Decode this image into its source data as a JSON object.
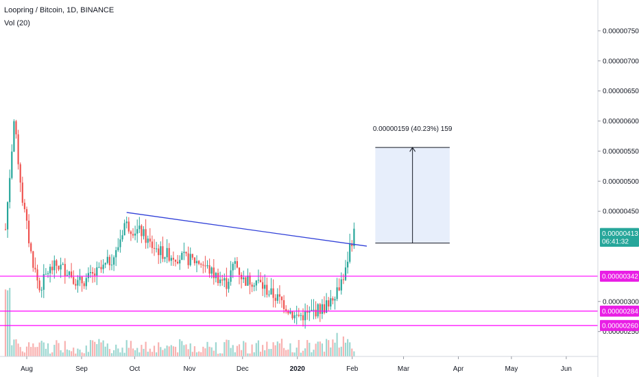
{
  "header": {
    "title": "Loopring / Bitcoin, 1D, BINANCE",
    "indicator": "Vol (20)"
  },
  "chart_data": {
    "type": "candlestick",
    "symbol": "Loopring / Bitcoin",
    "interval": "1D",
    "exchange": "BINANCE",
    "price_axis": {
      "range": [
        2.2e-06,
        7.75e-06
      ],
      "tick_labels": [
        "0.00000750",
        "0.00000700",
        "0.00000650",
        "0.00000600",
        "0.00000550",
        "0.00000500",
        "0.00000450",
        "0.00000300",
        "0.00000250"
      ]
    },
    "time_axis": {
      "tick_labels": [
        "Aug",
        "Sep",
        "Oct",
        "Nov",
        "Dec",
        "2020",
        "Feb",
        "Mar",
        "Apr",
        "May",
        "Jun"
      ]
    },
    "price_path": [
      [
        0,
        4.2e-06
      ],
      [
        4,
        6e-06
      ],
      [
        8,
        4.7e-06
      ],
      [
        12,
        3.8e-06
      ],
      [
        16,
        3.2e-06
      ],
      [
        20,
        3.5e-06
      ],
      [
        24,
        3.6e-06
      ],
      [
        30,
        3.5e-06
      ],
      [
        34,
        3.3e-06
      ],
      [
        40,
        3.4e-06
      ],
      [
        46,
        3.55e-06
      ],
      [
        52,
        3.8e-06
      ],
      [
        56,
        4.3e-06
      ],
      [
        60,
        4.2e-06
      ],
      [
        64,
        4.15e-06
      ],
      [
        68,
        3.95e-06
      ],
      [
        74,
        3.8e-06
      ],
      [
        80,
        3.75e-06
      ],
      [
        86,
        3.7e-06
      ],
      [
        92,
        3.65e-06
      ],
      [
        98,
        3.45e-06
      ],
      [
        104,
        3.3e-06
      ],
      [
        108,
        3.65e-06
      ],
      [
        112,
        3.35e-06
      ],
      [
        118,
        3.35e-06
      ],
      [
        124,
        3.15e-06
      ],
      [
        130,
        3e-06
      ],
      [
        136,
        2.75e-06
      ],
      [
        142,
        2.78e-06
      ],
      [
        146,
        2.85e-06
      ],
      [
        150,
        2.9e-06
      ],
      [
        156,
        3.2e-06
      ],
      [
        160,
        3.5e-06
      ],
      [
        162,
        3.92e-06
      ],
      [
        164,
        4.13e-06
      ]
    ],
    "price_labels": [
      {
        "label": "0.00000413",
        "value": 4.13e-06,
        "color": "#26a69a"
      },
      {
        "label": "06:41:32",
        "value": 4e-06,
        "color": "#26a69a"
      },
      {
        "label": "0.00000342",
        "value": 3.42e-06,
        "color": "#e91ee5"
      },
      {
        "label": "0.00000284",
        "value": 2.84e-06,
        "color": "#e91ee5"
      },
      {
        "label": "0.00000260",
        "value": 2.6e-06,
        "color": "#e91ee5"
      }
    ],
    "horizontal_lines": [
      3.42e-06,
      2.84e-06,
      2.6e-06
    ],
    "trendline": {
      "from": [
        57,
        4.48e-06
      ],
      "to": [
        170,
        3.92e-06
      ],
      "color": "#3040d8"
    },
    "projection": {
      "label": "0.00000159 (40.23%) 159",
      "from_value": 3.97e-06,
      "to_value": 5.56e-06
    },
    "colors": {
      "up": "#26a69a",
      "down": "#ef5350",
      "level_line": "#ff00ff",
      "trendline": "#3040d8",
      "projection_fill": "#e3ebfa"
    }
  }
}
